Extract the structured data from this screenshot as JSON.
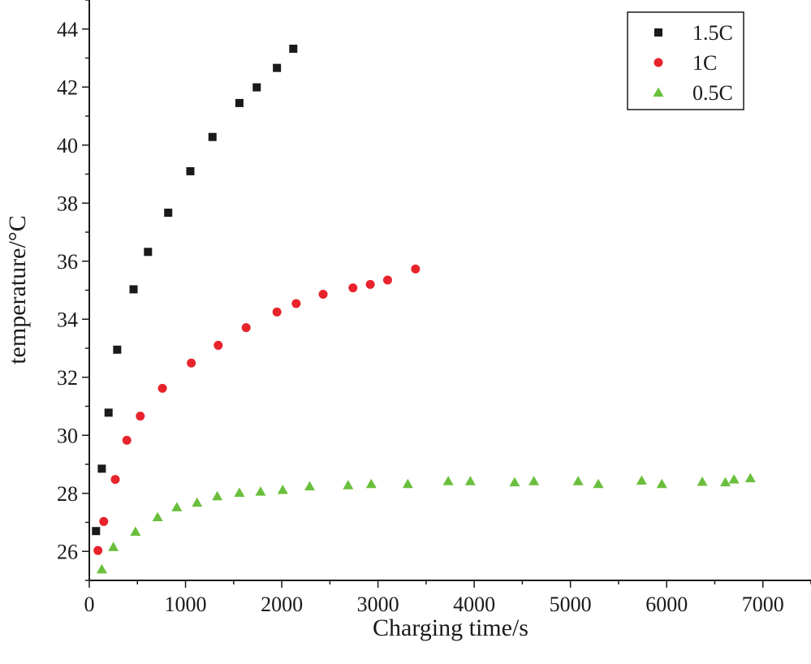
{
  "chart_data": {
    "type": "scatter",
    "title": "",
    "xlabel": "Charging time/s",
    "ylabel": "temperature/°C",
    "xlim": [
      0,
      7500
    ],
    "ylim": [
      25,
      45
    ],
    "xticks": [
      0,
      1000,
      2000,
      3000,
      4000,
      5000,
      6000,
      7000
    ],
    "yticks": [
      26,
      28,
      30,
      32,
      34,
      36,
      38,
      40,
      42,
      44
    ],
    "grid": false,
    "legend_position": "top-right",
    "series": [
      {
        "name": "1.5C",
        "marker": "square",
        "color": "#1a1a1a",
        "points": [
          [
            70,
            26.7
          ],
          [
            130,
            28.85
          ],
          [
            200,
            30.78
          ],
          [
            290,
            32.95
          ],
          [
            460,
            35.03
          ],
          [
            610,
            36.32
          ],
          [
            820,
            37.67
          ],
          [
            1050,
            39.1
          ],
          [
            1280,
            40.28
          ],
          [
            1560,
            41.45
          ],
          [
            1740,
            41.99
          ],
          [
            1950,
            42.66
          ],
          [
            2120,
            43.32
          ]
        ]
      },
      {
        "name": "1C",
        "marker": "circle",
        "color": "#e8232c",
        "points": [
          [
            90,
            26.03
          ],
          [
            150,
            27.03
          ],
          [
            270,
            28.48
          ],
          [
            390,
            29.83
          ],
          [
            530,
            30.66
          ],
          [
            760,
            31.62
          ],
          [
            1060,
            32.49
          ],
          [
            1340,
            33.1
          ],
          [
            1630,
            33.71
          ],
          [
            1950,
            34.25
          ],
          [
            2150,
            34.54
          ],
          [
            2430,
            34.86
          ],
          [
            2740,
            35.08
          ],
          [
            2920,
            35.2
          ],
          [
            3100,
            35.35
          ],
          [
            3390,
            35.73
          ]
        ]
      },
      {
        "name": "0.5C",
        "marker": "triangle",
        "color": "#6abf3c",
        "points": [
          [
            130,
            25.38
          ],
          [
            250,
            26.15
          ],
          [
            480,
            26.68
          ],
          [
            710,
            27.18
          ],
          [
            910,
            27.52
          ],
          [
            1120,
            27.68
          ],
          [
            1330,
            27.9
          ],
          [
            1560,
            28.02
          ],
          [
            1780,
            28.06
          ],
          [
            2010,
            28.12
          ],
          [
            2290,
            28.24
          ],
          [
            2690,
            28.28
          ],
          [
            2930,
            28.32
          ],
          [
            3310,
            28.32
          ],
          [
            3730,
            28.42
          ],
          [
            3960,
            28.42
          ],
          [
            4420,
            28.38
          ],
          [
            4620,
            28.42
          ],
          [
            5080,
            28.42
          ],
          [
            5290,
            28.32
          ],
          [
            5740,
            28.44
          ],
          [
            5950,
            28.32
          ],
          [
            6370,
            28.4
          ],
          [
            6610,
            28.38
          ],
          [
            6700,
            28.48
          ],
          [
            6870,
            28.52
          ]
        ]
      }
    ]
  }
}
